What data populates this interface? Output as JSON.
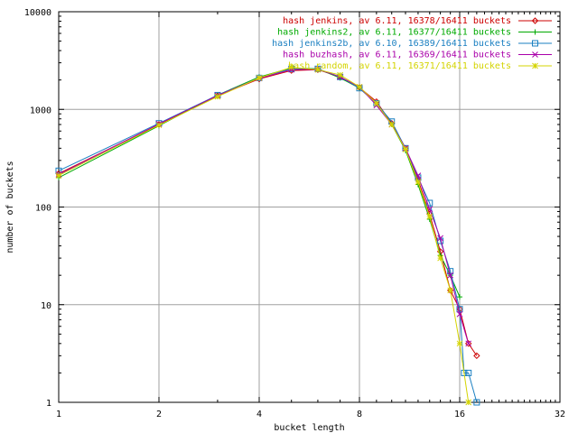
{
  "chart_data": {
    "type": "line",
    "xlabel": "bucket length",
    "ylabel": "number of buckets",
    "xscale": "log2",
    "yscale": "log10",
    "xlim": [
      1,
      32
    ],
    "ylim": [
      1,
      10000
    ],
    "grid": true,
    "legend": "top-right",
    "x_ticks": [
      "1",
      "2",
      "4",
      "8",
      "16",
      "32"
    ],
    "y_ticks": [
      "1",
      "10",
      "100",
      "1000",
      "10000"
    ],
    "series": [
      {
        "name": "hash jenkins, av 6.11, 16378/16411 buckets",
        "color": "#cc0000",
        "marker": "diamond",
        "points": [
          [
            1,
            220
          ],
          [
            2,
            700
          ],
          [
            3,
            1380
          ],
          [
            4,
            2050
          ],
          [
            5,
            2500
          ],
          [
            6,
            2550
          ],
          [
            7,
            2150
          ],
          [
            8,
            1680
          ],
          [
            9,
            1200
          ],
          [
            10,
            720
          ],
          [
            11,
            400
          ],
          [
            12,
            190
          ],
          [
            13,
            85
          ],
          [
            14,
            35
          ],
          [
            15,
            14
          ],
          [
            16,
            9
          ],
          [
            17,
            4
          ],
          [
            18,
            3
          ]
        ]
      },
      {
        "name": "hash jenkins2, av 6.11, 16377/16411 buckets",
        "color": "#00aa00",
        "marker": "plus",
        "points": [
          [
            1,
            200
          ],
          [
            2,
            680
          ],
          [
            3,
            1400
          ],
          [
            4,
            2150
          ],
          [
            5,
            2650
          ],
          [
            6,
            2600
          ],
          [
            7,
            2100
          ],
          [
            8,
            1650
          ],
          [
            9,
            1150
          ],
          [
            10,
            700
          ],
          [
            11,
            380
          ],
          [
            12,
            170
          ],
          [
            13,
            75
          ],
          [
            14,
            32
          ],
          [
            15,
            20
          ],
          [
            16,
            12
          ]
        ]
      },
      {
        "name": "hash jenkins2b, av 6.10, 16389/16411 buckets",
        "color": "#1a7fc1",
        "marker": "square",
        "points": [
          [
            1,
            235
          ],
          [
            2,
            720
          ],
          [
            3,
            1400
          ],
          [
            4,
            2100
          ],
          [
            5,
            2600
          ],
          [
            6,
            2600
          ],
          [
            7,
            2150
          ],
          [
            8,
            1650
          ],
          [
            9,
            1150
          ],
          [
            10,
            750
          ],
          [
            11,
            400
          ],
          [
            12,
            200
          ],
          [
            13,
            110
          ],
          [
            14,
            45
          ],
          [
            15,
            22
          ],
          [
            16,
            9
          ],
          [
            16.5,
            2
          ],
          [
            17,
            2
          ],
          [
            18,
            1
          ]
        ]
      },
      {
        "name": "hash buzhash, av 6.11, 16369/16411 buckets",
        "color": "#aa00aa",
        "marker": "cross",
        "points": [
          [
            1,
            215
          ],
          [
            2,
            710
          ],
          [
            3,
            1390
          ],
          [
            4,
            2080
          ],
          [
            5,
            2550
          ],
          [
            6,
            2580
          ],
          [
            7,
            2150
          ],
          [
            8,
            1700
          ],
          [
            9,
            1100
          ],
          [
            10,
            700
          ],
          [
            11,
            400
          ],
          [
            12,
            210
          ],
          [
            13,
            95
          ],
          [
            14,
            48
          ],
          [
            15,
            20
          ],
          [
            16,
            8
          ],
          [
            17,
            4
          ]
        ]
      },
      {
        "name": "hash random, av 6.11, 16371/16411 buckets",
        "color": "#d4d400",
        "marker": "star",
        "points": [
          [
            1,
            210
          ],
          [
            2,
            690
          ],
          [
            3,
            1350
          ],
          [
            4,
            2100
          ],
          [
            5,
            2700
          ],
          [
            6,
            2550
          ],
          [
            7,
            2250
          ],
          [
            8,
            1700
          ],
          [
            9,
            1150
          ],
          [
            10,
            700
          ],
          [
            11,
            390
          ],
          [
            12,
            180
          ],
          [
            13,
            80
          ],
          [
            14,
            30
          ],
          [
            15,
            14
          ],
          [
            16,
            4
          ],
          [
            17,
            1
          ]
        ]
      }
    ]
  }
}
